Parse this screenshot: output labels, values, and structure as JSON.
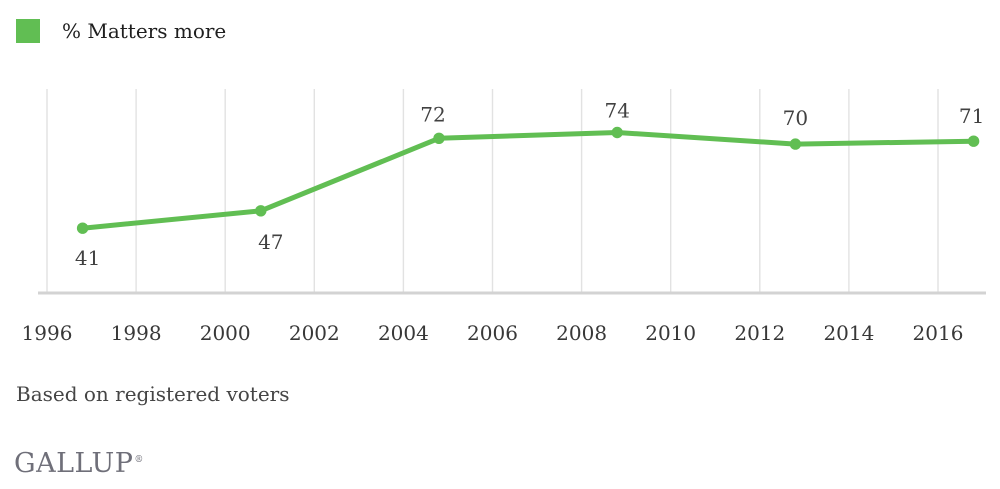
{
  "legend": {
    "label": "% Matters more"
  },
  "footer": {
    "note": "Based on registered voters",
    "brand": "GALLUP",
    "trademark": "®"
  },
  "colors": {
    "line": "#61be53",
    "point": "#61be53",
    "swatch": "#61be53",
    "gridline": "#e2e2e2",
    "axis": "#d3d3d3",
    "value_label": "#414141",
    "tick_label": "#383838"
  },
  "chart_data": {
    "type": "line",
    "title": "",
    "xlabel": "",
    "ylabel": "",
    "series": [
      {
        "name": "% Matters more",
        "points": [
          {
            "year": 1996.8,
            "value": 41
          },
          {
            "year": 2000.8,
            "value": 47
          },
          {
            "year": 2004.8,
            "value": 72
          },
          {
            "year": 2008.8,
            "value": 74
          },
          {
            "year": 2012.8,
            "value": 70
          },
          {
            "year": 2016.8,
            "value": 71
          }
        ]
      }
    ],
    "x_ticks": [
      "1996",
      "1998",
      "2000",
      "2002",
      "2004",
      "2006",
      "2008",
      "2010",
      "2012",
      "2014",
      "2016"
    ],
    "xlim": [
      1996,
      2017.1
    ],
    "ylim": [
      19,
      89
    ],
    "grid": "vertical-only",
    "legend_position": "top-left",
    "data_labels": true,
    "note": "Based on registered voters",
    "source": "GALLUP"
  }
}
